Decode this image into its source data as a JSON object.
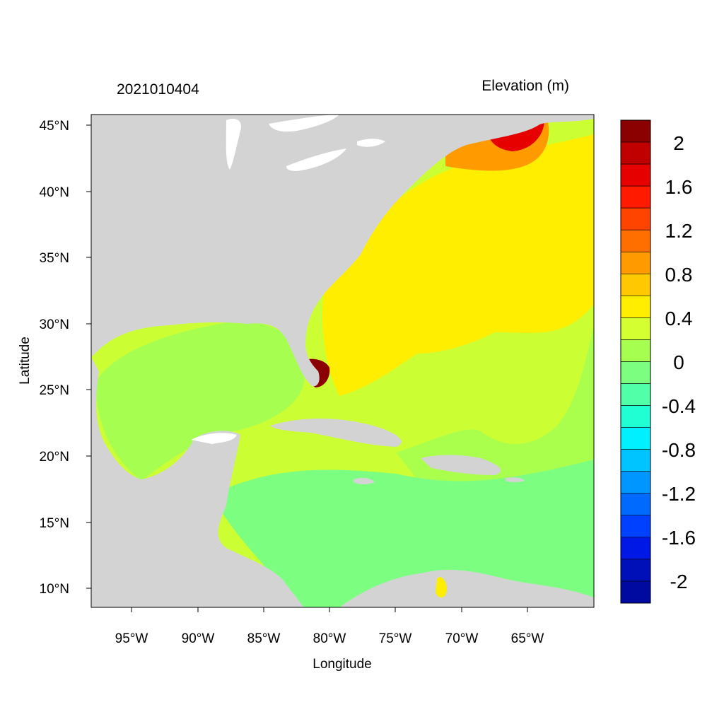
{
  "header": {
    "timestamp": "2021010404",
    "variable": "Elevation (m)"
  },
  "axes": {
    "xlabel": "Longitude",
    "ylabel": "Latitude",
    "lon_ticks": [
      "95°W",
      "90°W",
      "85°W",
      "80°W",
      "75°W",
      "70°W",
      "65°W"
    ],
    "lat_ticks": [
      "45°N",
      "40°N",
      "35°N",
      "30°N",
      "25°N",
      "20°N",
      "15°N",
      "10°N"
    ]
  },
  "colorbar": {
    "labels": [
      "2",
      "1.6",
      "1.2",
      "0.8",
      "0.4",
      "0",
      "-0.4",
      "-0.8",
      "-1.2",
      "-1.6",
      "-2"
    ],
    "colors_top_to_bottom": [
      "#8b0000",
      "#c00000",
      "#e60000",
      "#ff1a00",
      "#ff4400",
      "#ff6f00",
      "#ff9a00",
      "#ffc800",
      "#ffee00",
      "#d4ff30",
      "#a6ff50",
      "#7cff80",
      "#50ffa8",
      "#20ffd4",
      "#00f0ff",
      "#00c4ff",
      "#0096ff",
      "#006aff",
      "#0040ff",
      "#0018e6",
      "#0010b8",
      "#000aa0"
    ]
  },
  "colors": {
    "land": "#d3d3d3",
    "frame": "#000000"
  }
}
